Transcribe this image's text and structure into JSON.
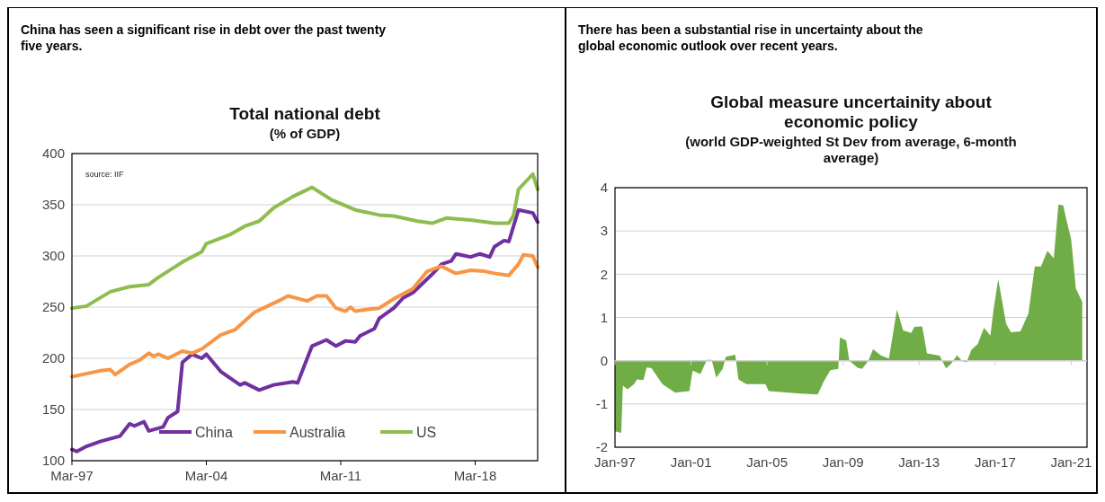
{
  "chart_data": [
    {
      "type": "line",
      "title": "Total national debt",
      "subtitle": "(% of GDP)",
      "annotations": [
        "China has seen a significant rise in debt over the past twenty five years.",
        "source:  IIF"
      ],
      "xlim": [
        "1997-03",
        "2021-06"
      ],
      "xticks": [
        {
          "value": "1997-03",
          "label": "Mar-97"
        },
        {
          "value": "2004-03",
          "label": "Mar-04"
        },
        {
          "value": "2011-03",
          "label": "Mar-11"
        },
        {
          "value": "2018-03",
          "label": "Mar-18"
        }
      ],
      "ylim": [
        100,
        400
      ],
      "yticks": [
        100,
        150,
        200,
        250,
        300,
        350,
        400
      ],
      "grid": "y",
      "legend": "bottom",
      "series": [
        {
          "name": "China",
          "color": "#7030a0",
          "x": [
            "1997-03",
            "1997-06",
            "1997-12",
            "1998-09",
            "1999-09",
            "2000-03",
            "2000-06",
            "2000-12",
            "2001-03",
            "2001-12",
            "2002-03",
            "2002-09",
            "2002-12",
            "2003-06",
            "2003-12",
            "2004-03",
            "2004-12",
            "2005-12",
            "2006-03",
            "2006-12",
            "2007-09",
            "2008-09",
            "2008-12",
            "2009-06",
            "2009-09",
            "2010-06",
            "2010-12",
            "2011-06",
            "2011-12",
            "2012-03",
            "2012-12",
            "2013-03",
            "2013-12",
            "2014-06",
            "2014-12",
            "2015-12",
            "2016-06",
            "2016-12",
            "2017-03",
            "2017-12",
            "2018-06",
            "2018-12",
            "2019-03",
            "2019-09",
            "2019-12",
            "2020-06",
            "2021-03",
            "2021-06"
          ],
          "values": [
            111,
            109,
            114,
            119,
            124,
            136,
            134,
            138,
            129,
            133,
            142,
            148,
            196,
            204,
            200,
            204,
            187,
            174,
            176,
            169,
            174,
            177,
            176,
            200,
            212,
            218,
            212,
            217,
            216,
            222,
            229,
            239,
            249,
            259,
            264,
            282,
            292,
            295,
            302,
            299,
            302,
            299,
            309,
            315,
            314,
            345,
            342,
            333
          ]
        },
        {
          "name": "Australia",
          "color": "#f79646",
          "x": [
            "1997-03",
            "1997-12",
            "1998-09",
            "1999-03",
            "1999-06",
            "2000-03",
            "2000-09",
            "2001-03",
            "2001-06",
            "2001-09",
            "2002-03",
            "2002-12",
            "2003-06",
            "2003-12",
            "2004-12",
            "2005-09",
            "2006-09",
            "2007-12",
            "2008-06",
            "2009-06",
            "2009-12",
            "2010-06",
            "2010-12",
            "2011-06",
            "2011-09",
            "2011-12",
            "2012-09",
            "2013-03",
            "2013-09",
            "2013-12",
            "2014-12",
            "2015-09",
            "2016-06",
            "2016-12",
            "2017-03",
            "2017-12",
            "2018-09",
            "2019-03",
            "2019-12",
            "2020-06",
            "2020-09",
            "2021-03",
            "2021-06"
          ],
          "values": [
            182,
            185,
            188,
            189,
            184,
            194,
            198,
            205,
            202,
            204,
            200,
            207,
            205,
            209,
            223,
            228,
            245,
            256,
            261,
            256,
            261,
            261,
            249,
            246,
            250,
            246,
            248,
            249,
            255,
            258,
            268,
            285,
            290,
            285,
            283,
            286,
            285,
            283,
            281,
            292,
            301,
            300,
            289
          ]
        },
        {
          "name": "US",
          "color": "#8fbc4f",
          "x": [
            "1997-03",
            "1997-12",
            "1999-03",
            "2000-03",
            "2001-03",
            "2001-09",
            "2002-12",
            "2003-12",
            "2004-03",
            "2005-06",
            "2006-03",
            "2006-12",
            "2007-09",
            "2008-09",
            "2009-09",
            "2010-09",
            "2011-12",
            "2013-03",
            "2013-12",
            "2015-03",
            "2015-12",
            "2016-09",
            "2017-12",
            "2019-03",
            "2019-12",
            "2020-03",
            "2020-06",
            "2020-12",
            "2021-03",
            "2021-06"
          ],
          "values": [
            249,
            251,
            265,
            270,
            272,
            279,
            294,
            304,
            312,
            321,
            329,
            334,
            347,
            358,
            367,
            355,
            345,
            340,
            339,
            334,
            332,
            337,
            335,
            332,
            332,
            340,
            365,
            375,
            380,
            365
          ]
        }
      ]
    },
    {
      "type": "area",
      "title": "Global measure uncertainity about economic policy",
      "subtitle": "(world GDP-weighted St Dev from average, 6-month average)",
      "annotations": [
        "There has been a substantial rise in uncertainty about the global economic outlook over recent years."
      ],
      "xlim": [
        "1997-01",
        "2021-11"
      ],
      "xticks": [
        {
          "value": "1997-01",
          "label": "Jan-97"
        },
        {
          "value": "2001-01",
          "label": "Jan-01"
        },
        {
          "value": "2005-01",
          "label": "Jan-05"
        },
        {
          "value": "2009-01",
          "label": "Jan-09"
        },
        {
          "value": "2013-01",
          "label": "Jan-13"
        },
        {
          "value": "2017-01",
          "label": "Jan-17"
        },
        {
          "value": "2021-01",
          "label": "Jan-21"
        }
      ],
      "ylim": [
        -2,
        4
      ],
      "yticks": [
        -2,
        -1,
        0,
        1,
        2,
        3,
        4
      ],
      "grid": "y",
      "series": [
        {
          "color": "#70ad47",
          "x": [
            "1997-01",
            "1997-05",
            "1997-06",
            "1997-09",
            "1998-01",
            "1998-03",
            "1998-07",
            "1998-09",
            "1998-12",
            "1999-07",
            "2000-03",
            "2000-12",
            "2001-02",
            "2001-07",
            "2001-11",
            "2002-02",
            "2002-05",
            "2002-09",
            "2002-11",
            "2003-05",
            "2003-07",
            "2003-12",
            "2004-12",
            "2005-02",
            "2006-10",
            "2007-09",
            "2008-01",
            "2008-05",
            "2008-10",
            "2008-11",
            "2009-03",
            "2009-05",
            "2009-10",
            "2010-01",
            "2010-05",
            "2010-08",
            "2011-01",
            "2011-06",
            "2011-11",
            "2012-03",
            "2012-08",
            "2012-10",
            "2013-03",
            "2013-06",
            "2014-02",
            "2014-06",
            "2014-09",
            "2015-01",
            "2015-04",
            "2015-07",
            "2015-10",
            "2016-02",
            "2016-06",
            "2016-10",
            "2016-12",
            "2017-03",
            "2017-08",
            "2017-11",
            "2018-05",
            "2018-10",
            "2019-02",
            "2019-06",
            "2019-10",
            "2020-02",
            "2020-05",
            "2020-08",
            "2020-10",
            "2021-01",
            "2021-04",
            "2021-08"
          ],
          "values": [
            -1.63,
            -1.67,
            -0.58,
            -0.66,
            -0.54,
            -0.43,
            -0.45,
            -0.16,
            -0.17,
            -0.54,
            -0.74,
            -0.7,
            -0.23,
            -0.31,
            0.02,
            0.02,
            -0.39,
            -0.19,
            0.09,
            0.14,
            -0.43,
            -0.54,
            -0.54,
            -0.7,
            -0.76,
            -0.78,
            -0.47,
            -0.22,
            -0.19,
            0.54,
            0.47,
            0,
            -0.16,
            -0.19,
            0,
            0.27,
            0.12,
            0.05,
            1.18,
            0.7,
            0.64,
            0.78,
            0.79,
            0.17,
            0.12,
            -0.18,
            -0.08,
            0.13,
            0,
            -0.04,
            0.25,
            0.39,
            0.76,
            0.58,
            1.18,
            1.88,
            0.85,
            0.66,
            0.68,
            1.09,
            2.18,
            2.18,
            2.54,
            2.37,
            3.61,
            3.59,
            3.26,
            2.8,
            1.67,
            1.36
          ]
        }
      ]
    }
  ]
}
